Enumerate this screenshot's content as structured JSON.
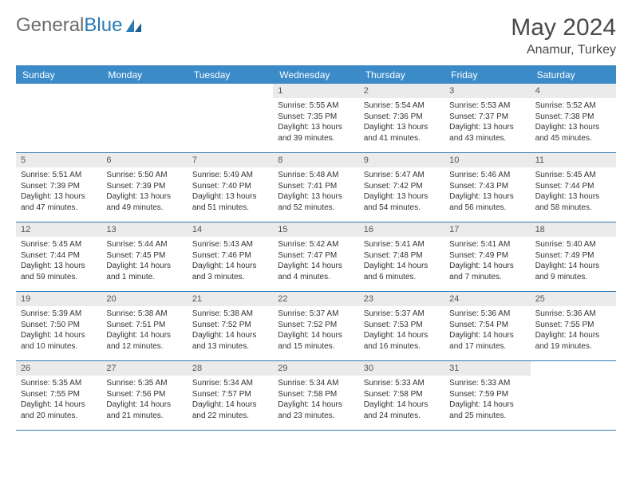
{
  "logo": {
    "text1": "General",
    "text2": "Blue"
  },
  "title": {
    "month": "May 2024",
    "location": "Anamur, Turkey"
  },
  "colors": {
    "header_bg": "#3b8bc9",
    "border": "#2a7ab8",
    "daynum_bg": "#ebebeb",
    "text": "#333333"
  },
  "day_names": [
    "Sunday",
    "Monday",
    "Tuesday",
    "Wednesday",
    "Thursday",
    "Friday",
    "Saturday"
  ],
  "weeks": [
    [
      {
        "n": "",
        "empty": true
      },
      {
        "n": "",
        "empty": true
      },
      {
        "n": "",
        "empty": true
      },
      {
        "n": "1",
        "sunrise": "Sunrise: 5:55 AM",
        "sunset": "Sunset: 7:35 PM",
        "day1": "Daylight: 13 hours",
        "day2": "and 39 minutes."
      },
      {
        "n": "2",
        "sunrise": "Sunrise: 5:54 AM",
        "sunset": "Sunset: 7:36 PM",
        "day1": "Daylight: 13 hours",
        "day2": "and 41 minutes."
      },
      {
        "n": "3",
        "sunrise": "Sunrise: 5:53 AM",
        "sunset": "Sunset: 7:37 PM",
        "day1": "Daylight: 13 hours",
        "day2": "and 43 minutes."
      },
      {
        "n": "4",
        "sunrise": "Sunrise: 5:52 AM",
        "sunset": "Sunset: 7:38 PM",
        "day1": "Daylight: 13 hours",
        "day2": "and 45 minutes."
      }
    ],
    [
      {
        "n": "5",
        "sunrise": "Sunrise: 5:51 AM",
        "sunset": "Sunset: 7:39 PM",
        "day1": "Daylight: 13 hours",
        "day2": "and 47 minutes."
      },
      {
        "n": "6",
        "sunrise": "Sunrise: 5:50 AM",
        "sunset": "Sunset: 7:39 PM",
        "day1": "Daylight: 13 hours",
        "day2": "and 49 minutes."
      },
      {
        "n": "7",
        "sunrise": "Sunrise: 5:49 AM",
        "sunset": "Sunset: 7:40 PM",
        "day1": "Daylight: 13 hours",
        "day2": "and 51 minutes."
      },
      {
        "n": "8",
        "sunrise": "Sunrise: 5:48 AM",
        "sunset": "Sunset: 7:41 PM",
        "day1": "Daylight: 13 hours",
        "day2": "and 52 minutes."
      },
      {
        "n": "9",
        "sunrise": "Sunrise: 5:47 AM",
        "sunset": "Sunset: 7:42 PM",
        "day1": "Daylight: 13 hours",
        "day2": "and 54 minutes."
      },
      {
        "n": "10",
        "sunrise": "Sunrise: 5:46 AM",
        "sunset": "Sunset: 7:43 PM",
        "day1": "Daylight: 13 hours",
        "day2": "and 56 minutes."
      },
      {
        "n": "11",
        "sunrise": "Sunrise: 5:45 AM",
        "sunset": "Sunset: 7:44 PM",
        "day1": "Daylight: 13 hours",
        "day2": "and 58 minutes."
      }
    ],
    [
      {
        "n": "12",
        "sunrise": "Sunrise: 5:45 AM",
        "sunset": "Sunset: 7:44 PM",
        "day1": "Daylight: 13 hours",
        "day2": "and 59 minutes."
      },
      {
        "n": "13",
        "sunrise": "Sunrise: 5:44 AM",
        "sunset": "Sunset: 7:45 PM",
        "day1": "Daylight: 14 hours",
        "day2": "and 1 minute."
      },
      {
        "n": "14",
        "sunrise": "Sunrise: 5:43 AM",
        "sunset": "Sunset: 7:46 PM",
        "day1": "Daylight: 14 hours",
        "day2": "and 3 minutes."
      },
      {
        "n": "15",
        "sunrise": "Sunrise: 5:42 AM",
        "sunset": "Sunset: 7:47 PM",
        "day1": "Daylight: 14 hours",
        "day2": "and 4 minutes."
      },
      {
        "n": "16",
        "sunrise": "Sunrise: 5:41 AM",
        "sunset": "Sunset: 7:48 PM",
        "day1": "Daylight: 14 hours",
        "day2": "and 6 minutes."
      },
      {
        "n": "17",
        "sunrise": "Sunrise: 5:41 AM",
        "sunset": "Sunset: 7:49 PM",
        "day1": "Daylight: 14 hours",
        "day2": "and 7 minutes."
      },
      {
        "n": "18",
        "sunrise": "Sunrise: 5:40 AM",
        "sunset": "Sunset: 7:49 PM",
        "day1": "Daylight: 14 hours",
        "day2": "and 9 minutes."
      }
    ],
    [
      {
        "n": "19",
        "sunrise": "Sunrise: 5:39 AM",
        "sunset": "Sunset: 7:50 PM",
        "day1": "Daylight: 14 hours",
        "day2": "and 10 minutes."
      },
      {
        "n": "20",
        "sunrise": "Sunrise: 5:38 AM",
        "sunset": "Sunset: 7:51 PM",
        "day1": "Daylight: 14 hours",
        "day2": "and 12 minutes."
      },
      {
        "n": "21",
        "sunrise": "Sunrise: 5:38 AM",
        "sunset": "Sunset: 7:52 PM",
        "day1": "Daylight: 14 hours",
        "day2": "and 13 minutes."
      },
      {
        "n": "22",
        "sunrise": "Sunrise: 5:37 AM",
        "sunset": "Sunset: 7:52 PM",
        "day1": "Daylight: 14 hours",
        "day2": "and 15 minutes."
      },
      {
        "n": "23",
        "sunrise": "Sunrise: 5:37 AM",
        "sunset": "Sunset: 7:53 PM",
        "day1": "Daylight: 14 hours",
        "day2": "and 16 minutes."
      },
      {
        "n": "24",
        "sunrise": "Sunrise: 5:36 AM",
        "sunset": "Sunset: 7:54 PM",
        "day1": "Daylight: 14 hours",
        "day2": "and 17 minutes."
      },
      {
        "n": "25",
        "sunrise": "Sunrise: 5:36 AM",
        "sunset": "Sunset: 7:55 PM",
        "day1": "Daylight: 14 hours",
        "day2": "and 19 minutes."
      }
    ],
    [
      {
        "n": "26",
        "sunrise": "Sunrise: 5:35 AM",
        "sunset": "Sunset: 7:55 PM",
        "day1": "Daylight: 14 hours",
        "day2": "and 20 minutes."
      },
      {
        "n": "27",
        "sunrise": "Sunrise: 5:35 AM",
        "sunset": "Sunset: 7:56 PM",
        "day1": "Daylight: 14 hours",
        "day2": "and 21 minutes."
      },
      {
        "n": "28",
        "sunrise": "Sunrise: 5:34 AM",
        "sunset": "Sunset: 7:57 PM",
        "day1": "Daylight: 14 hours",
        "day2": "and 22 minutes."
      },
      {
        "n": "29",
        "sunrise": "Sunrise: 5:34 AM",
        "sunset": "Sunset: 7:58 PM",
        "day1": "Daylight: 14 hours",
        "day2": "and 23 minutes."
      },
      {
        "n": "30",
        "sunrise": "Sunrise: 5:33 AM",
        "sunset": "Sunset: 7:58 PM",
        "day1": "Daylight: 14 hours",
        "day2": "and 24 minutes."
      },
      {
        "n": "31",
        "sunrise": "Sunrise: 5:33 AM",
        "sunset": "Sunset: 7:59 PM",
        "day1": "Daylight: 14 hours",
        "day2": "and 25 minutes."
      },
      {
        "n": "",
        "empty": true
      }
    ]
  ]
}
